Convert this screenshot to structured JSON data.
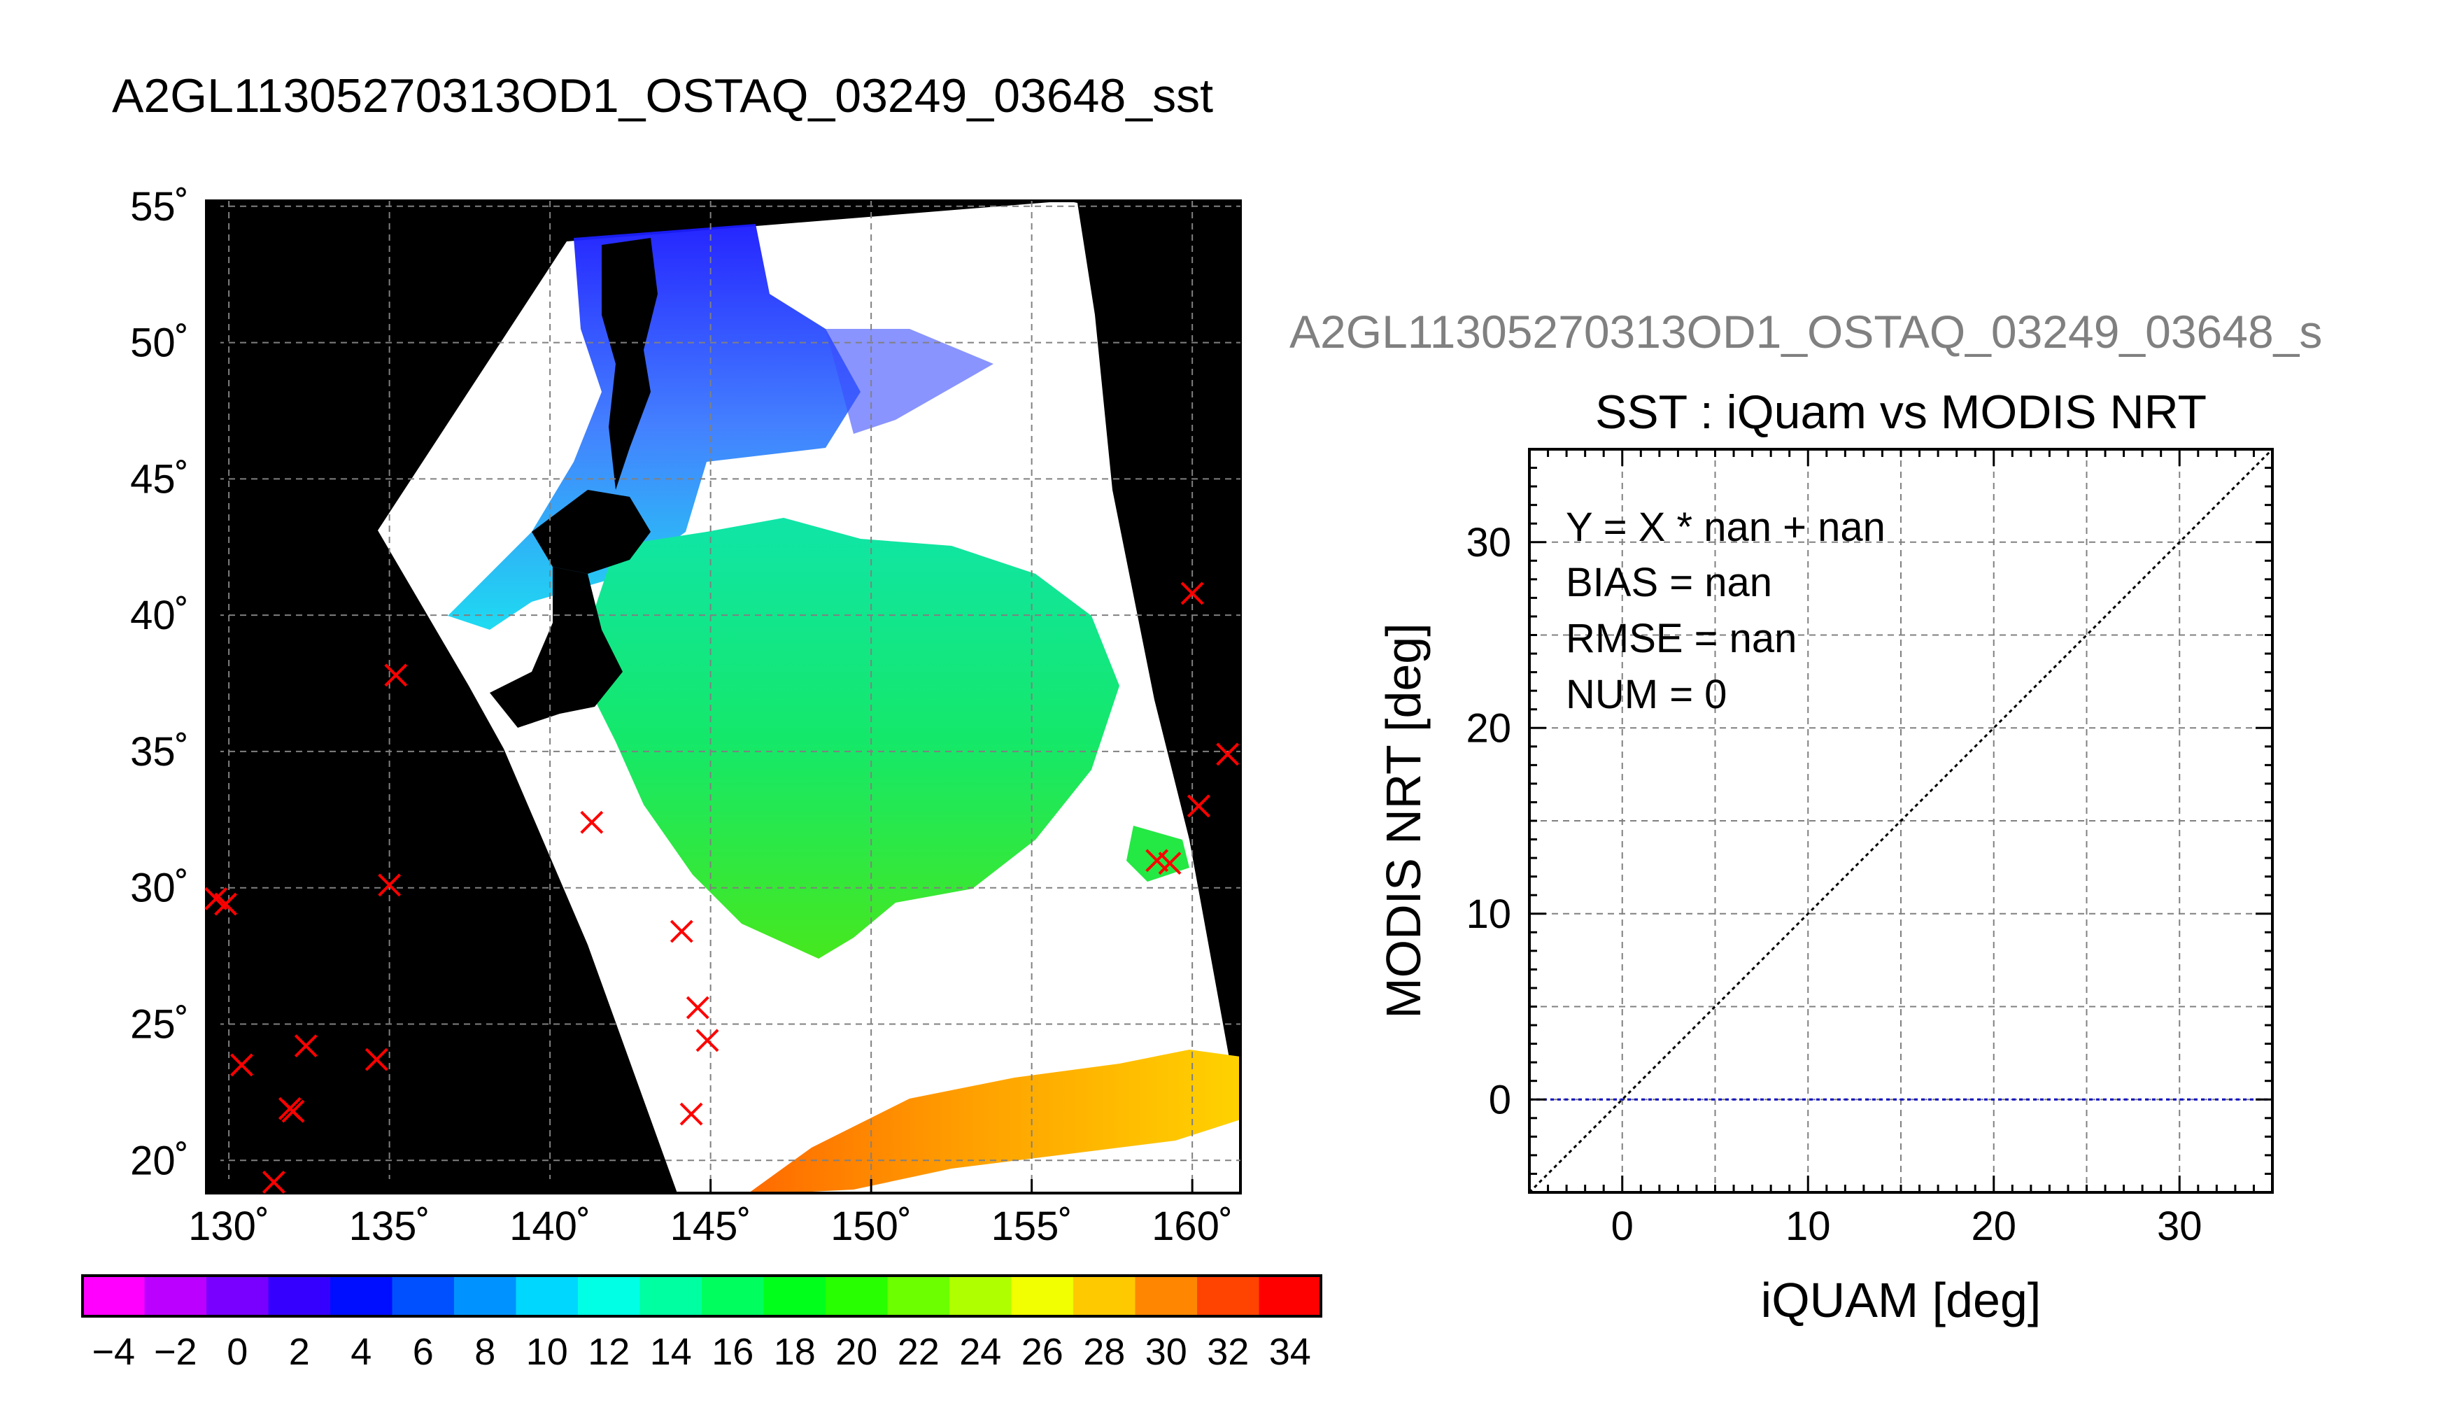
{
  "main_title": "A2GL11305270313OD1_OSTAQ_03249_03648_sst",
  "map": {
    "lat_labels": [
      "55˚",
      "50˚",
      "45˚",
      "40˚",
      "35˚",
      "30˚",
      "25˚",
      "20˚"
    ],
    "lat_values": [
      55,
      50,
      45,
      40,
      35,
      30,
      25,
      20
    ],
    "lon_labels": [
      "130˚",
      "135˚",
      "140˚",
      "145˚",
      "150˚",
      "155˚",
      "160˚"
    ],
    "lon_values": [
      130,
      135,
      140,
      145,
      150,
      155,
      160
    ],
    "lon_range": [
      129.3,
      161.5
    ],
    "lat_range": [
      18.8,
      55.2
    ],
    "grid": true,
    "observations": [
      {
        "lon": 129.6,
        "lat": 29.6
      },
      {
        "lon": 129.9,
        "lat": 29.4
      },
      {
        "lon": 130.4,
        "lat": 23.5
      },
      {
        "lon": 131.4,
        "lat": 19.2
      },
      {
        "lon": 131.9,
        "lat": 21.9
      },
      {
        "lon": 132.0,
        "lat": 21.8
      },
      {
        "lon": 132.4,
        "lat": 24.2
      },
      {
        "lon": 134.6,
        "lat": 23.7
      },
      {
        "lon": 135.0,
        "lat": 30.1
      },
      {
        "lon": 135.2,
        "lat": 37.8
      },
      {
        "lon": 141.3,
        "lat": 32.4
      },
      {
        "lon": 144.1,
        "lat": 28.4
      },
      {
        "lon": 144.6,
        "lat": 25.6
      },
      {
        "lon": 144.9,
        "lat": 24.4
      },
      {
        "lon": 144.4,
        "lat": 21.7
      },
      {
        "lon": 158.9,
        "lat": 31.0
      },
      {
        "lon": 159.3,
        "lat": 30.9
      },
      {
        "lon": 160.0,
        "lat": 40.8
      },
      {
        "lon": 160.2,
        "lat": 33.0
      },
      {
        "lon": 161.1,
        "lat": 34.9
      }
    ]
  },
  "colorbar": {
    "min": -5,
    "max": 35,
    "step": 2,
    "tick_labels": [
      "−4",
      "−2",
      "0",
      "2",
      "4",
      "6",
      "8",
      "10",
      "12",
      "14",
      "16",
      "18",
      "20",
      "22",
      "24",
      "26",
      "28",
      "30",
      "32",
      "34"
    ],
    "tick_values": [
      -4,
      -2,
      0,
      2,
      4,
      6,
      8,
      10,
      12,
      14,
      16,
      18,
      20,
      22,
      24,
      26,
      28,
      30,
      32,
      34
    ]
  },
  "chart_data": {
    "type": "scatter",
    "file_title": "A2GL11305270313OD1_OSTAQ_03249_03648_s",
    "title": "SST : iQuam vs MODIS NRT",
    "xlabel": "iQUAM [deg]",
    "ylabel": "MODIS NRT [deg]",
    "xlim": [
      -5,
      35
    ],
    "ylim": [
      -5,
      35
    ],
    "x_ticks": [
      0,
      10,
      20,
      30
    ],
    "y_ticks": [
      0,
      10,
      20,
      30
    ],
    "x_tick_labels": [
      "0",
      "10",
      "20",
      "30"
    ],
    "y_tick_labels": [
      "0",
      "10",
      "20",
      "30"
    ],
    "grid": true,
    "points": [],
    "reference_line": {
      "name": "1:1 line",
      "slope": 1,
      "intercept": 0
    },
    "fit_line": {
      "y": 0
    },
    "stats": {
      "equation": "Y = X * nan + nan",
      "bias": "BIAS = nan",
      "rmse": "RMSE = nan",
      "num": "NUM = 0"
    }
  },
  "colors": {
    "marker": "#ff0000",
    "land": "#000000",
    "fit_line": "#0000c0",
    "file_title": "#808080"
  }
}
